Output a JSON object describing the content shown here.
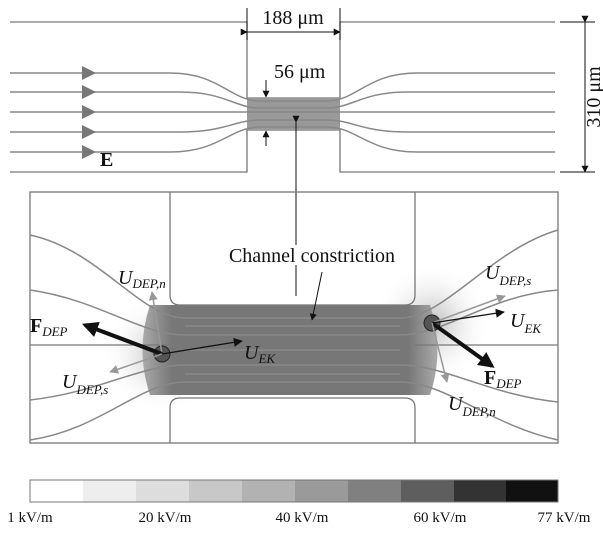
{
  "dimensions": {
    "channel_width": "188 μm",
    "constriction_height": "56 μm",
    "channel_height": "310 μm"
  },
  "field_label": "E",
  "constriction_label": "Channel constriction",
  "left_particle": {
    "u_dep_n": {
      "base": "U",
      "sub": "DEP,n⃗"
    },
    "f_dep": {
      "base": "F",
      "sub": "DEP"
    },
    "u_dep_s": {
      "base": "U",
      "sub": "DEP,s⃗"
    },
    "u_ek": {
      "base": "U",
      "sub": "EK"
    }
  },
  "right_particle": {
    "u_dep_s": {
      "base": "U",
      "sub": "DEP,s⃗"
    },
    "u_ek": {
      "base": "U",
      "sub": "EK"
    },
    "f_dep": {
      "base": "F",
      "sub": "DEP"
    },
    "u_dep_n": {
      "base": "U",
      "sub": "DEP,n⃗"
    }
  },
  "colorbar": {
    "labels": [
      "1 kV/m",
      "20 kV/m",
      "40 kV/m",
      "60 kV/m",
      "77 kV/m"
    ]
  }
}
